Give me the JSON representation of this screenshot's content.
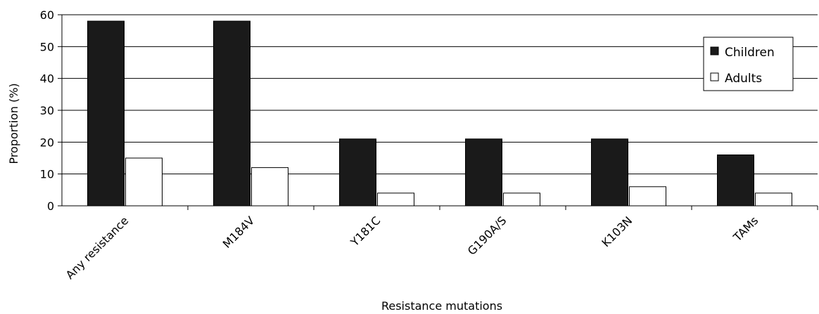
{
  "chart_data": {
    "type": "bar",
    "title": "",
    "xlabel": "Resistance mutations",
    "ylabel": "Proportion (%)",
    "ylim": [
      0,
      60
    ],
    "yticks": [
      0,
      10,
      20,
      30,
      40,
      50,
      60
    ],
    "grid": true,
    "legend_position": "top-right",
    "categories": [
      "Any resistance",
      "M184V",
      "Y181C",
      "G190A/S",
      "K103N",
      "TAMs"
    ],
    "series": [
      {
        "name": "Children",
        "color": "#1a1a1a",
        "values": [
          58,
          58,
          21,
          21,
          21,
          16
        ]
      },
      {
        "name": "Adults",
        "color": "#ffffff",
        "values": [
          15,
          12,
          4,
          4,
          6,
          4
        ]
      }
    ]
  }
}
